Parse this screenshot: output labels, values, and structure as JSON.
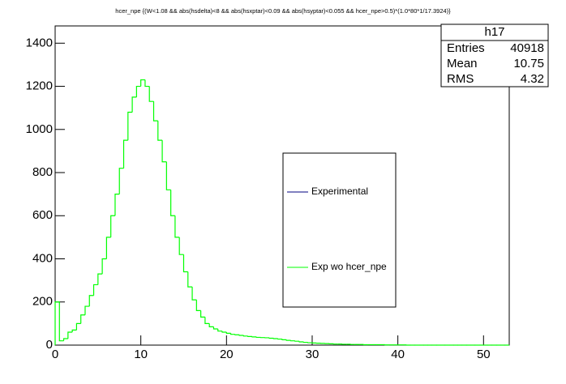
{
  "chart_data": {
    "type": "histogram",
    "title": "hcer_npe {(W<1.08 && abs(hsdelta)<8 && abs(hsxptar)<0.09 && abs(hsyptar)<0.055 && hcer_npe>0.5)*(1.0*80*1/17.3924)}",
    "bins": [
      0,
      0.5,
      1,
      1.5,
      2,
      2.5,
      3,
      3.5,
      4,
      4.5,
      5,
      5.5,
      6,
      6.5,
      7,
      7.5,
      8,
      8.5,
      9,
      9.5,
      10,
      10.5,
      11,
      11.5,
      12,
      12.5,
      13,
      13.5,
      14,
      14.5,
      15,
      15.5,
      16,
      16.5,
      17,
      17.5,
      18,
      18.5,
      19,
      19.5,
      20,
      20.5,
      21,
      21.5,
      22,
      22.5,
      23,
      23.5,
      24,
      24.5,
      25,
      25.5,
      26,
      26.5,
      27,
      27.5,
      28,
      28.5,
      29,
      29.5,
      30,
      30.5,
      31,
      31.5,
      32,
      32.5,
      33,
      33.5,
      34,
      34.5,
      35,
      35.5,
      36,
      36.5,
      37,
      37.5,
      38,
      38.5,
      39,
      39.5,
      40,
      40.5,
      41,
      41.5,
      42,
      42.5,
      43,
      43.5,
      44,
      44.5,
      45,
      45.5,
      46,
      46.5,
      47,
      47.5,
      48,
      48.5,
      49,
      49.5,
      50,
      50.5,
      51,
      51.5,
      52,
      52.5,
      53
    ],
    "series": [
      {
        "name": "Exp wo hcer_npe",
        "color": "#00ff00",
        "values": [
          200,
          20,
          30,
          60,
          70,
          100,
          140,
          180,
          230,
          280,
          330,
          400,
          500,
          600,
          700,
          820,
          950,
          1080,
          1150,
          1200,
          1230,
          1200,
          1130,
          1040,
          950,
          850,
          720,
          600,
          500,
          420,
          340,
          270,
          210,
          160,
          130,
          100,
          85,
          75,
          65,
          60,
          55,
          50,
          48,
          45,
          42,
          40,
          38,
          36,
          35,
          34,
          32,
          30,
          28,
          25,
          22,
          20,
          18,
          15,
          13,
          11,
          10,
          9,
          8,
          7,
          6,
          5,
          5,
          4,
          4,
          3,
          3,
          3,
          2,
          2,
          2,
          2,
          2,
          1,
          1,
          1,
          1,
          1,
          0,
          0,
          0,
          0,
          0,
          0,
          0,
          0,
          0,
          0,
          0,
          0,
          0,
          0,
          0,
          0,
          0,
          0,
          0,
          0,
          0,
          0,
          0,
          0
        ]
      }
    ],
    "legend_entries": [
      {
        "name": "Experimental",
        "color": "#000080"
      },
      {
        "name": "Exp wo hcer_npe",
        "color": "#00ff00"
      }
    ],
    "stats": {
      "name": "h17",
      "rows": [
        [
          "Entries",
          "40918"
        ],
        [
          "Mean",
          "10.75"
        ],
        [
          "RMS",
          "4.32"
        ]
      ]
    },
    "xlim": [
      0,
      53
    ],
    "xticks": [
      0,
      10,
      20,
      30,
      40,
      50
    ],
    "ylim": [
      0,
      1480
    ],
    "yticks": [
      0,
      200,
      400,
      600,
      800,
      1000,
      1200,
      1400
    ]
  }
}
